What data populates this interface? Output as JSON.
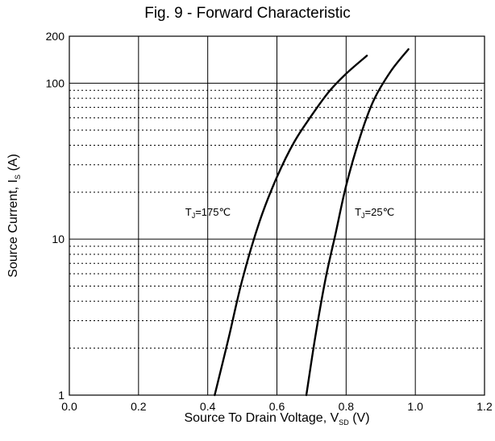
{
  "chart_data": {
    "type": "line",
    "title": "Fig. 9 - Forward Characteristic",
    "xlabel": {
      "main": "Source To Drain Voltage, V",
      "sub": "SD",
      "unit": " (V)"
    },
    "ylabel": {
      "main": "Source Current, I",
      "sub": "S",
      "unit": "  (A)"
    },
    "x_axis": {
      "min": 0.0,
      "max": 1.2,
      "scale": "linear",
      "ticks": [
        0.0,
        0.2,
        0.4,
        0.6,
        0.8,
        1.0,
        1.2
      ],
      "tick_labels": [
        "0.0",
        "0.2",
        "0.4",
        "0.6",
        "0.8",
        "1.0",
        "1.2"
      ]
    },
    "y_axis": {
      "min": 1,
      "max": 200,
      "scale": "log",
      "ticks": [
        1,
        10,
        100,
        200
      ],
      "tick_labels": [
        "1",
        "10",
        "100",
        "200"
      ]
    },
    "grid": true,
    "series": [
      {
        "name": "T_J=175℃",
        "label_parts": {
          "pre": "T",
          "sub": "J",
          "post": "=175℃"
        },
        "label_at": {
          "x": 0.335,
          "y": 15
        },
        "x": [
          0.42,
          0.46,
          0.5,
          0.55,
          0.6,
          0.65,
          0.7,
          0.75,
          0.8,
          0.86
        ],
        "y": [
          1,
          2.3,
          5.5,
          13,
          25,
          42,
          62,
          88,
          115,
          150
        ]
      },
      {
        "name": "T_J=25℃",
        "label_parts": {
          "pre": "T",
          "sub": "J",
          "post": "=25℃"
        },
        "label_at": {
          "x": 0.825,
          "y": 15
        },
        "x": [
          0.685,
          0.71,
          0.74,
          0.77,
          0.8,
          0.84,
          0.88,
          0.93,
          0.98
        ],
        "y": [
          1,
          2.3,
          5.5,
          11,
          22,
          45,
          78,
          120,
          165
        ]
      }
    ]
  }
}
